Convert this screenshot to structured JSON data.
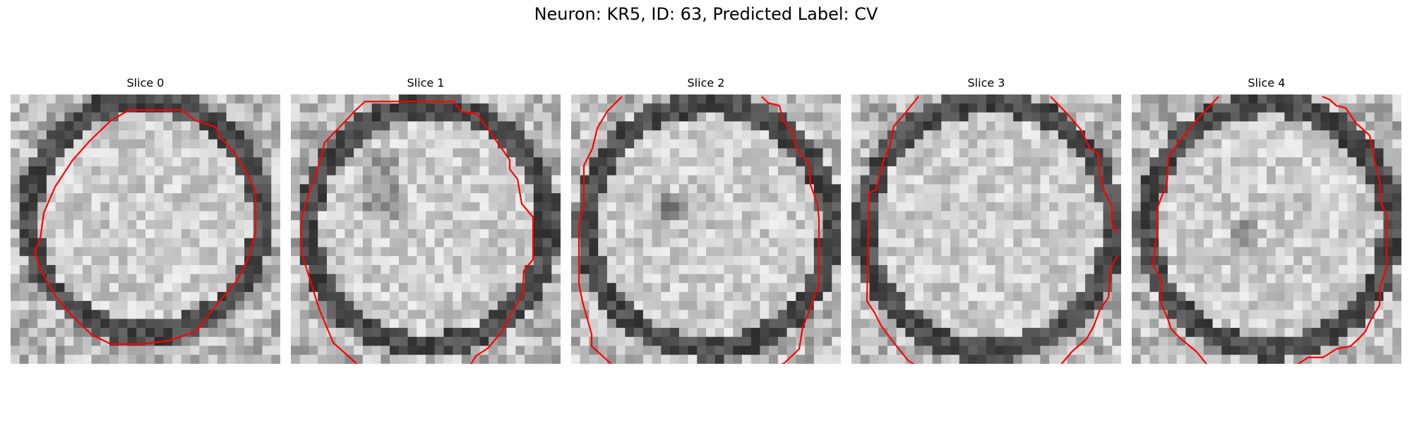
{
  "figure": {
    "title": "Neuron: KR5, ID: 63, Predicted Label: CV"
  },
  "slices": [
    {
      "title": "Slice 0"
    },
    {
      "title": "Slice 1"
    },
    {
      "title": "Slice 2"
    },
    {
      "title": "Slice 3"
    },
    {
      "title": "Slice 4"
    }
  ],
  "style": {
    "contour_color": "#ff0000",
    "colormap": "grayscale"
  }
}
